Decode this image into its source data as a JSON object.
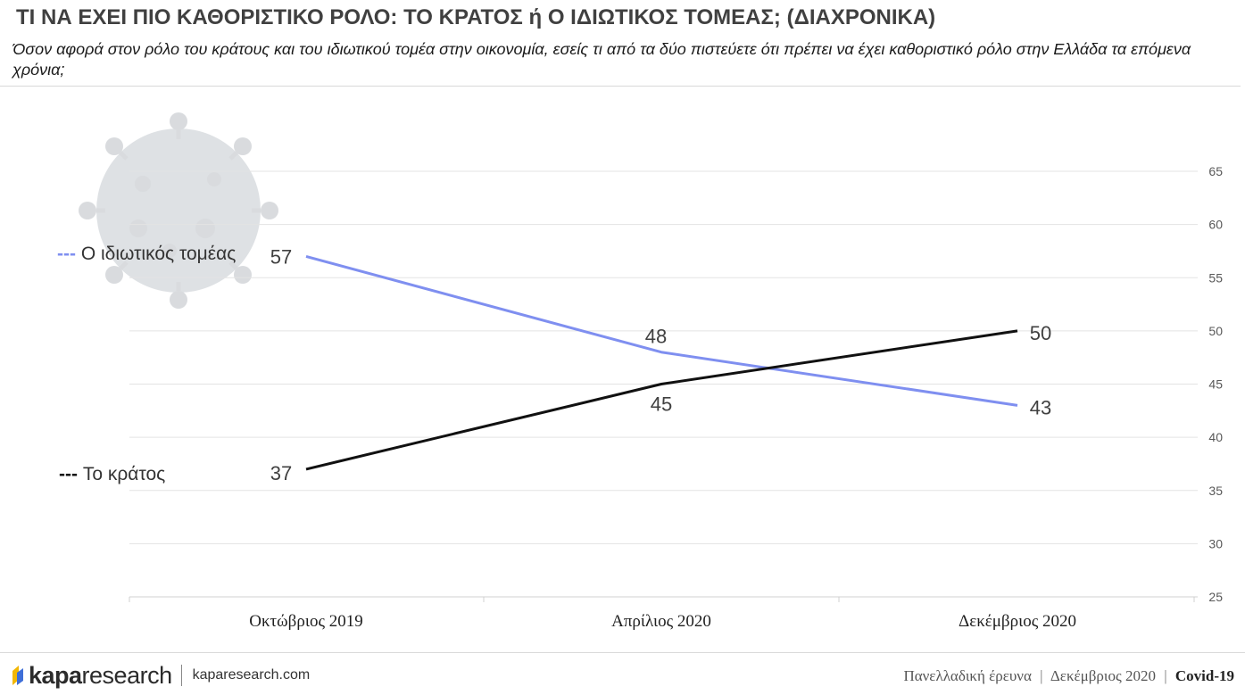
{
  "header": {
    "title": "ΤΙ ΝΑ ΕΧΕΙ ΠΙΟ ΚΑΘΟΡΙΣΤΙΚΟ ΡΟΛΟ: ΤΟ ΚΡΑΤΟΣ ή Ο ΙΔΙΩΤΙΚΟΣ ΤΟΜΕΑΣ; (ΔΙΑΧΡΟΝΙΚΑ)",
    "subtitle": "Όσον αφορά στον ρόλο του κράτους και του ιδιωτικού τομέα στην οικονομία, εσείς τι από τα δύο πιστεύετε ότι πρέπει να έχει καθοριστικό ρόλο στην Ελλάδα τα επόμενα χρόνια;"
  },
  "chart_data": {
    "type": "line",
    "categories": [
      "Οκτώβριος 2019",
      "Απρίλιος 2020",
      "Δεκέμβριος 2020"
    ],
    "series": [
      {
        "name": "Ο ιδιωτικός τομέας",
        "legend_marker": "---",
        "values": [
          57,
          48,
          43
        ],
        "color": "#7f8ff0"
      },
      {
        "name": "Το κράτος",
        "legend_marker": "---",
        "values": [
          37,
          45,
          50
        ],
        "color": "#111111"
      }
    ],
    "ylim": [
      25,
      65
    ],
    "yticks": [
      25,
      30,
      35,
      40,
      45,
      50,
      55,
      60,
      65
    ],
    "y_axis_side": "right",
    "grid": true,
    "legend": "left-inline"
  },
  "footer": {
    "brand_bold": "kapa",
    "brand_light": "research",
    "url": "kaparesearch.com",
    "survey": "Πανελλαδική έρευνα",
    "date": "Δεκέμβριος 2020",
    "tag": "Covid-19",
    "separator": "|"
  }
}
